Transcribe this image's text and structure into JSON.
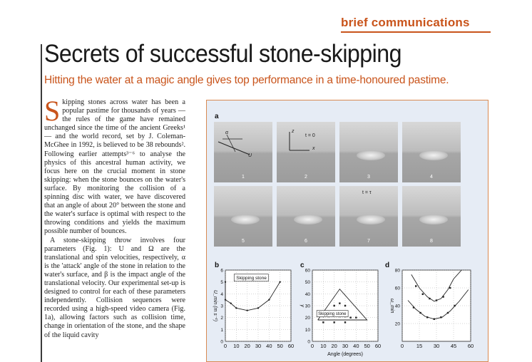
{
  "section": "brief communications",
  "title": "Secrets of successful stone-skipping",
  "subtitle": "Hitting the water at a magic angle gives top performance in a time-honoured pastime.",
  "body": {
    "dropcap": "S",
    "p1": "kipping stones across water has been a popular pastime for thousands of years — the rules of the game have remained unchanged since the time of the ancient Greeks¹ — and the world record, set by J. Coleman-McGhee in 1992, is believed to be 38 rebounds². Following earlier attempts³⁻⁶ to analyse the physics of this ancestral human activity, we focus here on the crucial moment in stone skipping: when the stone bounces on the water's surface. By monitoring the collision of a spinning disc with water, we have discovered that an angle of about 20° between the stone and the water's surface is optimal with respect to the throwing conditions and yields the maximum possible number of bounces.",
    "p2": "A stone-skipping throw involves four parameters (Fig. 1): U and Ω are the translational and spin velocities, respectively, α is the 'attack' angle of the stone in relation to the water's surface, and β is the impact angle of the translational velocity. Our experimental set-up is designed to control for each of these parameters independently. Collision sequences were recorded using a high-speed video camera (Fig. 1a), allowing factors such as collision time, change in orientation of the stone, and the shape of the liquid cavity"
  },
  "figure": {
    "panel_a": "a",
    "panel_b": "b",
    "panel_c": "c",
    "panel_d": "d",
    "frames": [
      "1",
      "2",
      "3",
      "4",
      "5",
      "6",
      "7",
      "8"
    ],
    "t0_label": "t = 0",
    "ttau_label": "t = τ",
    "alpha_sym": "α",
    "U_sym": "U",
    "z_sym": "z",
    "x_sym": "x"
  },
  "chart_data": [
    {
      "type": "line",
      "panel": "b",
      "title": "",
      "xlabel": "",
      "ylabel": "U_min (m s⁻¹)",
      "xlim": [
        0,
        60
      ],
      "ylim": [
        0,
        6
      ],
      "x_ticks": [
        "0",
        "10",
        "20",
        "30",
        "40",
        "50",
        "60"
      ],
      "y_ticks": [
        "0",
        "1",
        "2",
        "3",
        "4",
        "5",
        "6"
      ],
      "annotation": "Skipping stone",
      "series": [
        {
          "x": [
            0,
            0,
            5,
            10,
            20,
            30,
            40,
            50
          ],
          "y": [
            5,
            3.5,
            3.2,
            2.8,
            2.6,
            2.8,
            3.5,
            5
          ]
        }
      ]
    },
    {
      "type": "scatter",
      "panel": "c",
      "xlabel": "Angle (degrees)",
      "ylabel": "γ",
      "xlim": [
        0,
        60
      ],
      "ylim": [
        0,
        60
      ],
      "x_ticks": [
        "0",
        "10",
        "20",
        "30",
        "40",
        "50",
        "60"
      ],
      "y_ticks": [
        "0",
        "10",
        "20",
        "30",
        "40",
        "50",
        "60"
      ],
      "annotation": "Skipping stone",
      "region": {
        "x": [
          5,
          25,
          50,
          5,
          5
        ],
        "y": [
          18,
          44,
          18,
          18,
          18
        ]
      },
      "points": [
        {
          "x": 10,
          "y": 21
        },
        {
          "x": 15,
          "y": 21
        },
        {
          "x": 20,
          "y": 22
        },
        {
          "x": 25,
          "y": 21
        },
        {
          "x": 30,
          "y": 21
        },
        {
          "x": 35,
          "y": 20
        },
        {
          "x": 40,
          "y": 20
        },
        {
          "x": 20,
          "y": 30
        },
        {
          "x": 25,
          "y": 32
        },
        {
          "x": 30,
          "y": 30
        },
        {
          "x": 10,
          "y": 16
        },
        {
          "x": 20,
          "y": 16
        },
        {
          "x": 30,
          "y": 16
        }
      ]
    },
    {
      "type": "line",
      "panel": "d",
      "xlabel": "",
      "ylabel": "ω_min",
      "xlim": [
        0,
        60
      ],
      "ylim": [
        0,
        80
      ],
      "x_ticks": [
        "0",
        "15",
        "30",
        "45",
        "60"
      ],
      "y_ticks": [
        "20",
        "40",
        "60",
        "80"
      ],
      "series": [
        {
          "x": [
            8,
            15,
            22,
            28,
            34,
            40,
            45,
            52
          ],
          "y": [
            75,
            60,
            50,
            45,
            48,
            58,
            70,
            80
          ]
        },
        {
          "x": [
            5,
            12,
            20,
            28,
            35,
            42,
            50,
            58
          ],
          "y": [
            46,
            36,
            28,
            25,
            27,
            34,
            45,
            58
          ]
        }
      ],
      "points": [
        {
          "x": 12,
          "y": 62
        },
        {
          "x": 18,
          "y": 53
        },
        {
          "x": 24,
          "y": 48
        },
        {
          "x": 30,
          "y": 46
        },
        {
          "x": 36,
          "y": 50
        },
        {
          "x": 42,
          "y": 60
        },
        {
          "x": 10,
          "y": 38
        },
        {
          "x": 16,
          "y": 32
        },
        {
          "x": 22,
          "y": 27
        },
        {
          "x": 28,
          "y": 25
        },
        {
          "x": 34,
          "y": 27
        },
        {
          "x": 40,
          "y": 32
        },
        {
          "x": 46,
          "y": 40
        }
      ]
    }
  ]
}
